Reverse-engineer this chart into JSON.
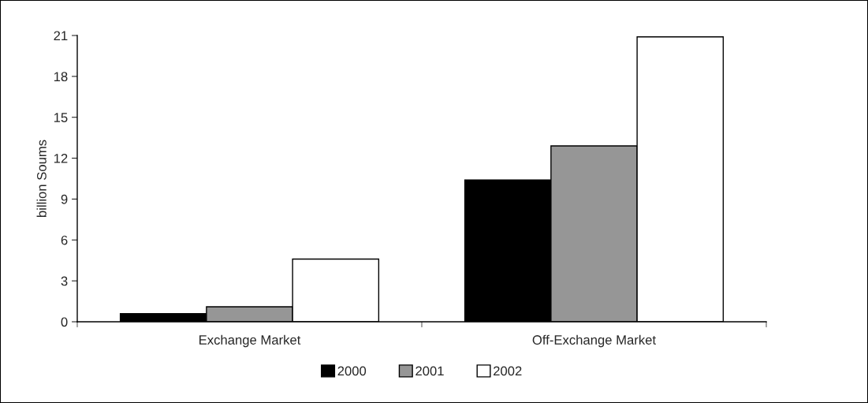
{
  "chart_data": {
    "type": "bar",
    "ylabel": "billion Soums",
    "categories": [
      "Exchange Market",
      "Off-Exchange Market"
    ],
    "series": [
      {
        "name": "2000",
        "color": "#000000",
        "values": [
          0.6,
          10.4
        ]
      },
      {
        "name": "2001",
        "color": "#969696",
        "values": [
          1.1,
          12.9
        ]
      },
      {
        "name": "2002",
        "color": "#ffffff",
        "values": [
          4.6,
          20.9
        ]
      }
    ],
    "ylim": [
      0,
      21
    ],
    "yticks": [
      0,
      3,
      6,
      9,
      12,
      15,
      18,
      21
    ],
    "grid": false,
    "legend": "bottom"
  }
}
